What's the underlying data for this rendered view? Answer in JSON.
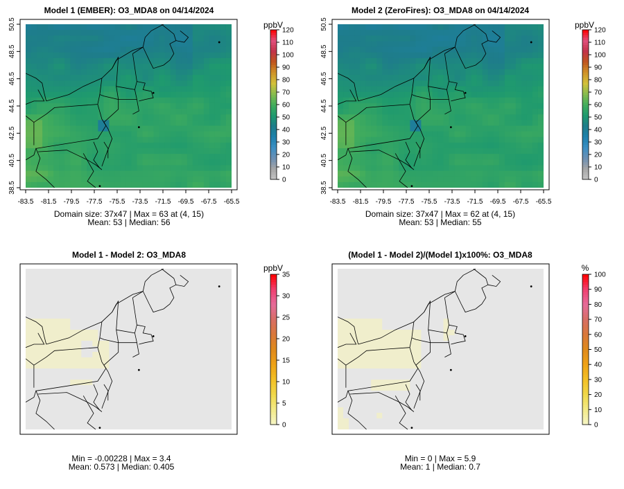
{
  "colorbar_palettes": {
    "conc": [
      "#c4c4c4",
      "#a6a6a6",
      "#6b8fb3",
      "#3c8fc4",
      "#1d80ac",
      "#1e7d8a",
      "#1f9a6e",
      "#43ad5c",
      "#86bc4e",
      "#d3c13b",
      "#d09328",
      "#c0561d",
      "#c2344a",
      "#e0507c",
      "#ff0000"
    ],
    "diff": [
      "#f6f6c8",
      "#f3ea88",
      "#f0d84a",
      "#f2c026",
      "#eea216",
      "#e08a1c",
      "#d9783a",
      "#d86e64",
      "#e56c9a",
      "#f04070",
      "#ff0000"
    ]
  },
  "map_colors": {
    "frame": "#000000",
    "state_lines": "#000000",
    "diff_background": "#e6e6e6",
    "diff_tint": "#f0eecc"
  },
  "chart_data": [
    {
      "type": "heatmap",
      "title": "Model 1 (EMBER): O3_MDA8 on 04/14/2024",
      "unit": "ppbV",
      "xticks": [
        "-83.5",
        "-81.5",
        "-79.5",
        "-77.5",
        "-75.5",
        "-73.5",
        "-71.5",
        "-69.5",
        "-67.5",
        "-65.5"
      ],
      "yticks": [
        "38.5",
        "40.5",
        "42.5",
        "44.5",
        "46.5",
        "48.5",
        "50.5"
      ],
      "colorbar_ticks": [
        "0",
        "10",
        "20",
        "30",
        "40",
        "50",
        "60",
        "70",
        "80",
        "90",
        "100",
        "110",
        "120"
      ],
      "colorbar_range": [
        0,
        120
      ],
      "stats_line1": "Domain size: 37x47 | Max = 63 at (4, 15)",
      "stats_line2": "Mean: 53 |  Median: 56",
      "domain_size": "37x47",
      "max": 63,
      "max_at": "(4, 15)",
      "mean": 53,
      "median": 56
    },
    {
      "type": "heatmap",
      "title": "Model 2 (ZeroFires): O3_MDA8 on 04/14/2024",
      "unit": "ppbV",
      "xticks": [
        "-83.5",
        "-81.5",
        "-79.5",
        "-77.5",
        "-75.5",
        "-73.5",
        "-71.5",
        "-69.5",
        "-67.5",
        "-65.5"
      ],
      "yticks": [
        "38.5",
        "40.5",
        "42.5",
        "44.5",
        "46.5",
        "48.5",
        "50.5"
      ],
      "colorbar_ticks": [
        "0",
        "10",
        "20",
        "30",
        "40",
        "50",
        "60",
        "70",
        "80",
        "90",
        "100",
        "110",
        "120"
      ],
      "colorbar_range": [
        0,
        120
      ],
      "stats_line1": "Domain size: 37x47 | Max = 62 at (4, 15)",
      "stats_line2": "Mean: 53 |  Median: 55",
      "domain_size": "37x47",
      "max": 62,
      "max_at": "(4, 15)",
      "mean": 53,
      "median": 55
    },
    {
      "type": "heatmap",
      "title": "Model 1 - Model 2: O3_MDA8",
      "unit": "ppbV",
      "colorbar_ticks": [
        "0",
        "5",
        "10",
        "15",
        "20",
        "25",
        "30",
        "35"
      ],
      "colorbar_range": [
        0,
        35
      ],
      "stats_line1": "Min = -0.00228 | Max = 3.4",
      "stats_line2": "Mean: 0.573 |  Median: 0.405",
      "min": -0.00228,
      "max": 3.4,
      "mean": 0.573,
      "median": 0.405
    },
    {
      "type": "heatmap",
      "title": "(Model 1 - Model 2)/(Model 1)x100%: O3_MDA8",
      "unit": "%",
      "colorbar_ticks": [
        "0",
        "10",
        "20",
        "30",
        "40",
        "50",
        "60",
        "70",
        "80",
        "90",
        "100"
      ],
      "colorbar_range": [
        0,
        100
      ],
      "stats_line1": "Min = 0 | Max = 5.9",
      "stats_line2": "Mean: 1 |  Median: 0.7",
      "min": 0,
      "max": 5.9,
      "mean": 1,
      "median": 0.7
    }
  ]
}
